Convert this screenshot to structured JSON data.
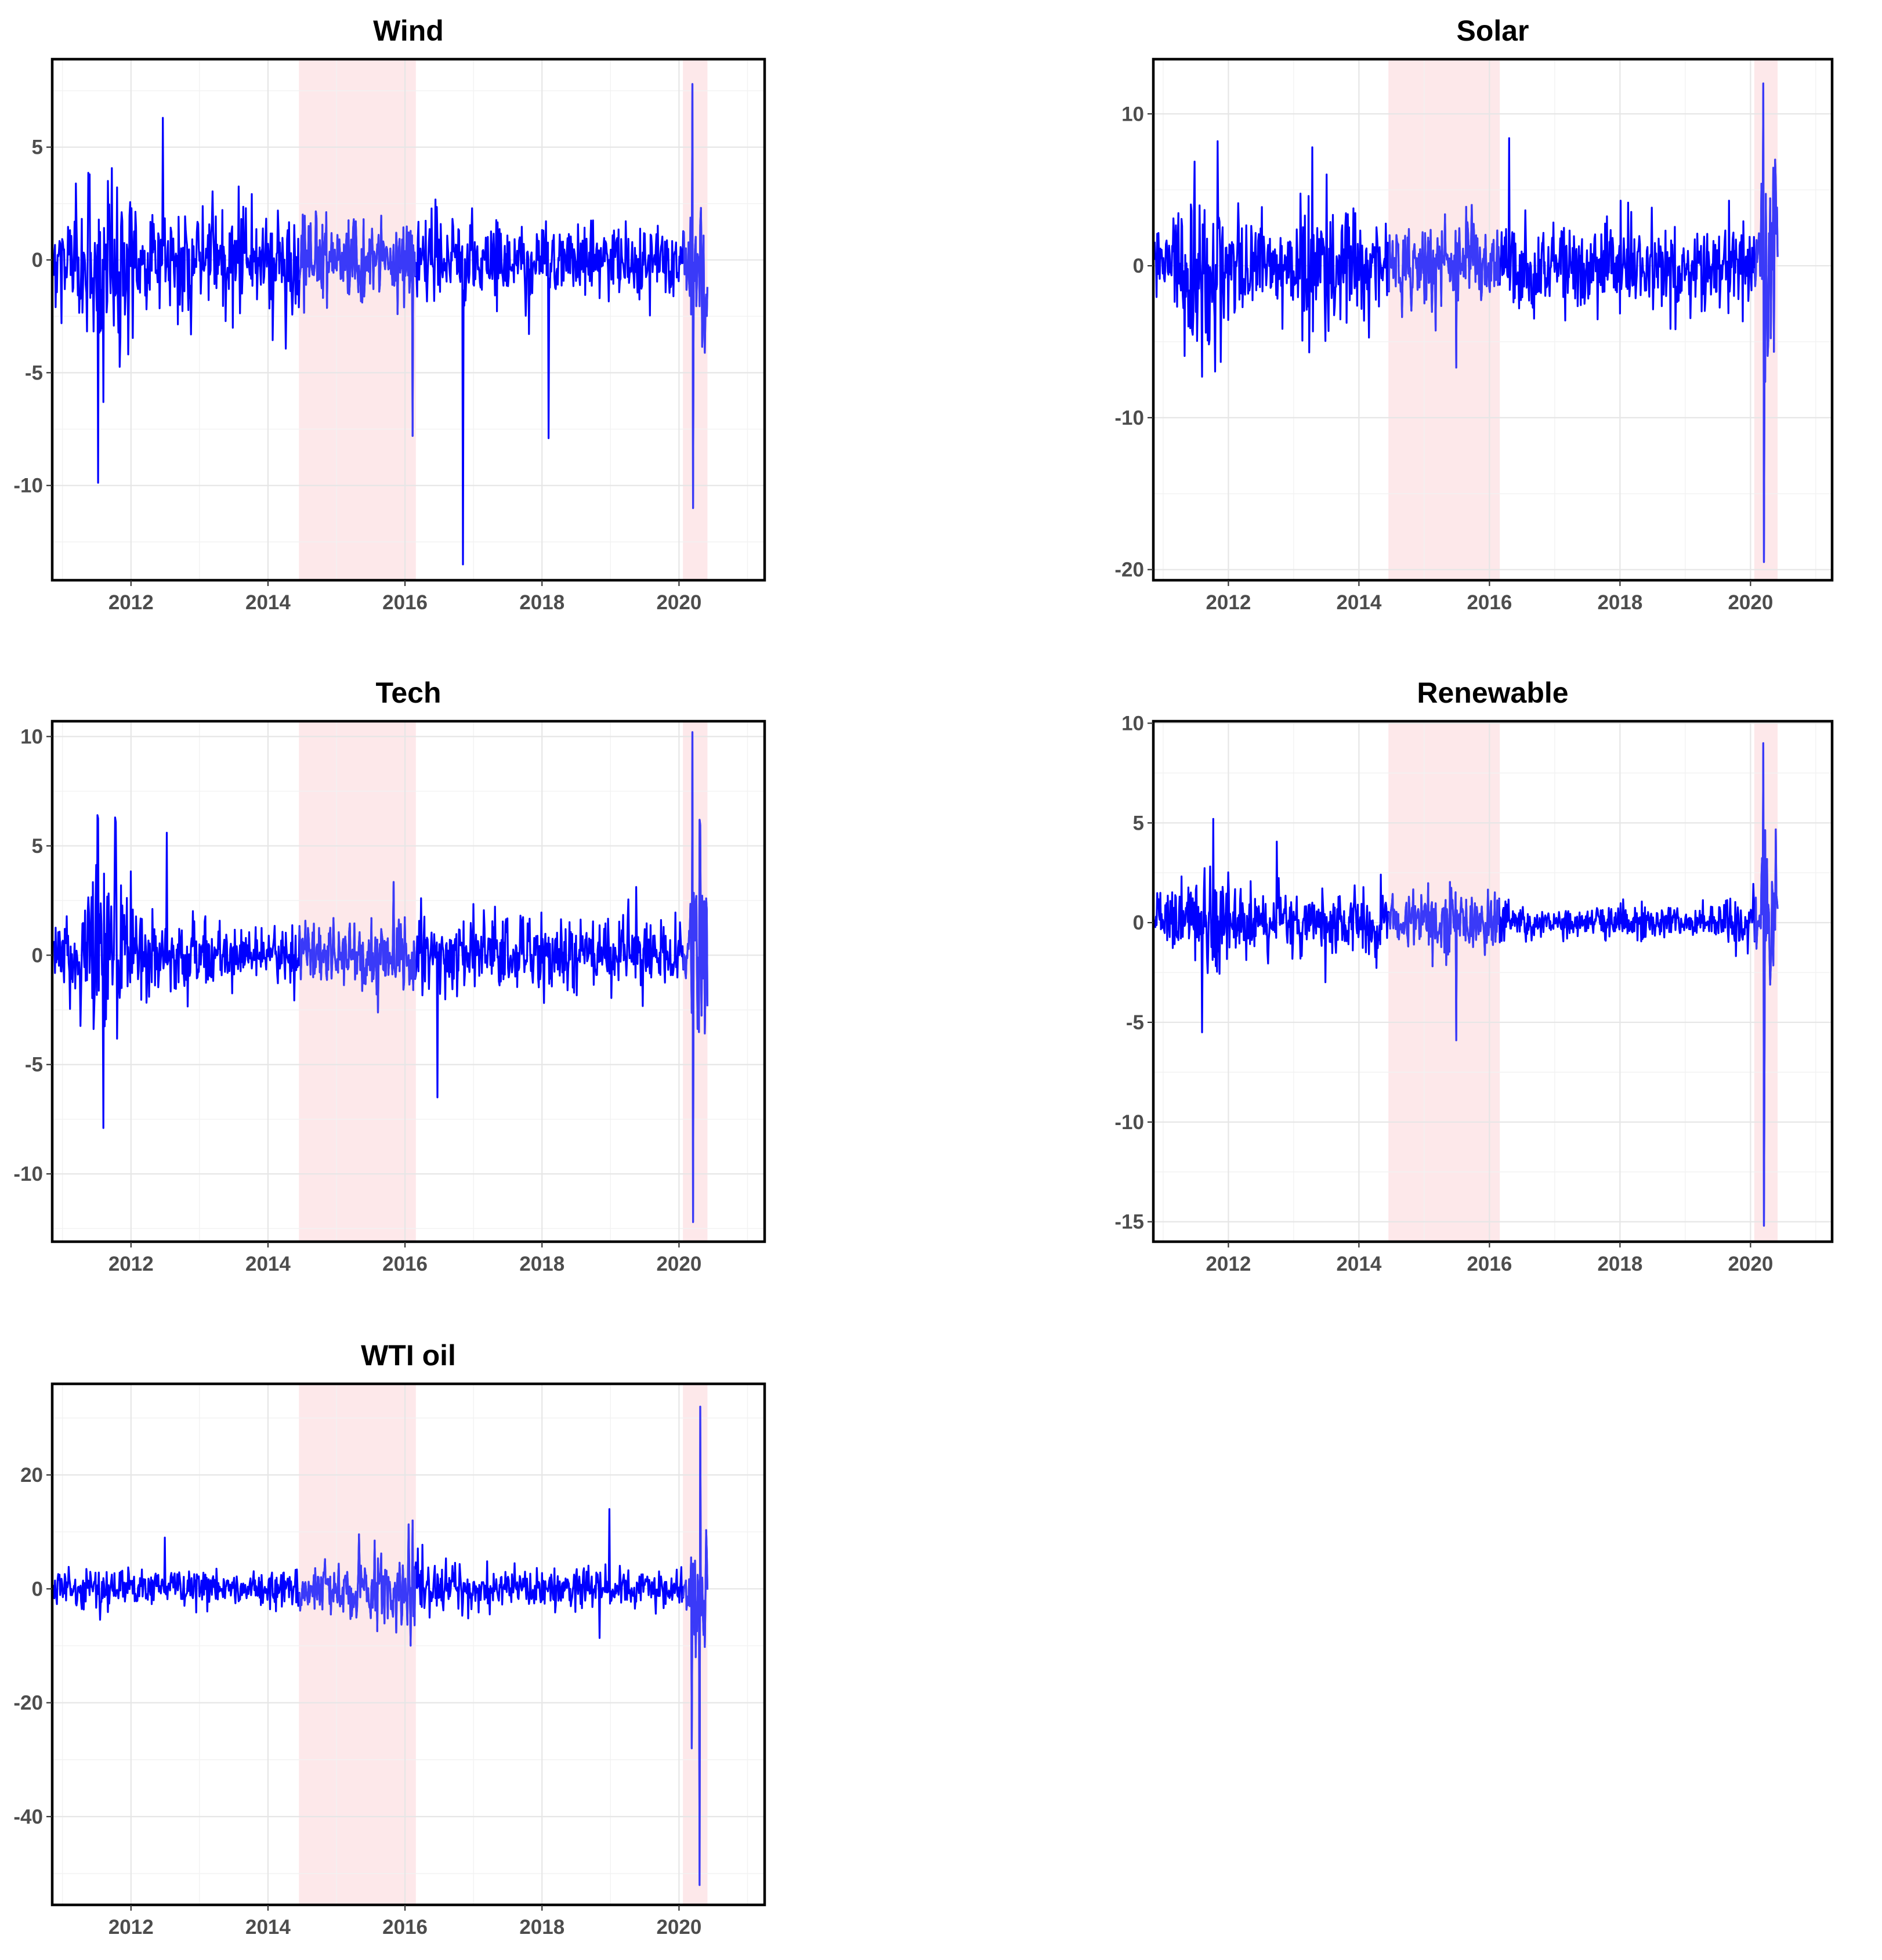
{
  "chart_data": [
    {
      "type": "line",
      "title": "Wind",
      "xlabel": "",
      "ylabel": "",
      "x_range": [
        "2010-11-15",
        "2020-06-01"
      ],
      "xlim_years": [
        2010.85,
        2021.25
      ],
      "ylim": [
        -14.2,
        8.9
      ],
      "y_ticks": [
        -10,
        -5,
        0,
        5
      ],
      "y_tick_labels": [
        "-10",
        "-5",
        "0",
        "5"
      ],
      "x_ticks": [
        2012,
        2014,
        2016,
        2018,
        2020
      ],
      "x_tick_labels": [
        "2012",
        "2014",
        "2016",
        "2018",
        "2020"
      ],
      "grid": true,
      "legend": "none",
      "approx_range": [
        -13.5,
        7.8
      ],
      "extremes": [
        {
          "date": "2011-08-08",
          "value": -6.3
        },
        {
          "date": "2012-06-20",
          "value": 6.3
        },
        {
          "date": "2016-02-10",
          "value": -7.8
        },
        {
          "date": "2016-11-04",
          "value": -13.5
        },
        {
          "date": "2018-02-05",
          "value": -7.9
        },
        {
          "date": "2020-03-12",
          "value": 7.8
        },
        {
          "date": "2020-03-16",
          "value": -11.0
        }
      ]
    },
    {
      "type": "line",
      "title": "Solar",
      "xlabel": "",
      "ylabel": "",
      "x_range": [
        "2010-11-15",
        "2020-06-01"
      ],
      "xlim_years": [
        2010.85,
        2021.25
      ],
      "ylim": [
        -20.7,
        13.6
      ],
      "y_ticks": [
        -20,
        -10,
        0,
        10
      ],
      "y_tick_labels": [
        "-20",
        "-10",
        "0",
        "10"
      ],
      "x_ticks": [
        2012,
        2014,
        2016,
        2018,
        2020
      ],
      "x_tick_labels": [
        "2012",
        "2014",
        "2016",
        "2018",
        "2020"
      ],
      "grid": true,
      "legend": "none",
      "approx_range": [
        -19.5,
        12.0
      ],
      "extremes": [
        {
          "date": "2011-08-08",
          "value": -7.3
        },
        {
          "date": "2011-11-01",
          "value": 8.2
        },
        {
          "date": "2013-04-15",
          "value": 7.8
        },
        {
          "date": "2015-06-29",
          "value": -6.7
        },
        {
          "date": "2016-04-20",
          "value": 8.4
        },
        {
          "date": "2020-03-12",
          "value": 12.0
        },
        {
          "date": "2020-03-16",
          "value": -19.5
        }
      ]
    },
    {
      "type": "line",
      "title": "Tech",
      "xlabel": "",
      "ylabel": "",
      "x_range": [
        "2010-11-15",
        "2020-06-01"
      ],
      "xlim_years": [
        2010.85,
        2021.25
      ],
      "ylim": [
        -13.1,
        10.7
      ],
      "y_ticks": [
        -10,
        -5,
        0,
        5,
        10
      ],
      "y_tick_labels": [
        "-10",
        "-5",
        "0",
        "5",
        "10"
      ],
      "x_ticks": [
        2012,
        2014,
        2016,
        2018,
        2020
      ],
      "x_tick_labels": [
        "2012",
        "2014",
        "2016",
        "2018",
        "2020"
      ],
      "grid": true,
      "legend": "none",
      "approx_range": [
        -12.2,
        10.2
      ],
      "extremes": [
        {
          "date": "2011-08-08",
          "value": -7.9
        },
        {
          "date": "2011-10-10",
          "value": 6.3
        },
        {
          "date": "2012-07-10",
          "value": 5.6
        },
        {
          "date": "2016-06-24",
          "value": -6.5
        },
        {
          "date": "2020-03-13",
          "value": 10.2
        },
        {
          "date": "2020-03-16",
          "value": -12.2
        }
      ]
    },
    {
      "type": "line",
      "title": "Renewable",
      "xlabel": "",
      "ylabel": "",
      "x_range": [
        "2010-11-15",
        "2020-06-01"
      ],
      "xlim_years": [
        2010.85,
        2021.25
      ],
      "ylim": [
        -16.0,
        10.1
      ],
      "y_ticks": [
        -15,
        -10,
        -5,
        0,
        5,
        10
      ],
      "y_tick_labels": [
        "-15",
        "-10",
        "-5",
        "0",
        "5",
        "10"
      ],
      "x_ticks": [
        2012,
        2014,
        2016,
        2018,
        2020
      ],
      "x_tick_labels": [
        "2012",
        "2014",
        "2016",
        "2018",
        "2020"
      ],
      "grid": true,
      "legend": "none",
      "approx_range": [
        -15.2,
        9.0
      ],
      "extremes": [
        {
          "date": "2011-08-08",
          "value": -5.5
        },
        {
          "date": "2011-10-10",
          "value": 5.2
        },
        {
          "date": "2015-06-29",
          "value": -5.9
        },
        {
          "date": "2020-03-13",
          "value": 9.0
        },
        {
          "date": "2020-03-16",
          "value": -15.2
        }
      ]
    },
    {
      "type": "line",
      "title": "WTI oil",
      "xlabel": "",
      "ylabel": "",
      "x_range": [
        "2010-11-15",
        "2020-06-01"
      ],
      "xlim_years": [
        2010.85,
        2021.25
      ],
      "ylim": [
        -55.5,
        36.0
      ],
      "y_ticks": [
        -40,
        -20,
        0,
        20
      ],
      "y_tick_labels": [
        "-40",
        "-20",
        "0",
        "20"
      ],
      "x_ticks": [
        2012,
        2014,
        2016,
        2018,
        2020
      ],
      "x_tick_labels": [
        "2012",
        "2014",
        "2016",
        "2018",
        "2020"
      ],
      "grid": true,
      "legend": "none",
      "approx_range": [
        -52.0,
        32.0
      ],
      "extremes": [
        {
          "date": "2012-06-29",
          "value": 9.0
        },
        {
          "date": "2016-02-12",
          "value": 12.0
        },
        {
          "date": "2018-12-26",
          "value": 14.0
        },
        {
          "date": "2020-03-09",
          "value": -28.0
        },
        {
          "date": "2020-04-20",
          "value": -52.0
        },
        {
          "date": "2020-04-22",
          "value": 32.0
        }
      ]
    }
  ],
  "shaded_periods": [
    {
      "start": "2014-06-15",
      "end": "2016-02-28",
      "color": "#fde8ea"
    },
    {
      "start": "2020-01-22",
      "end": "2020-06-01",
      "color": "#fde8ea"
    }
  ],
  "colors": {
    "series_normal": "#0000ff",
    "series_shaded": "#3a3af8",
    "shade": "#fde8ea",
    "frame": "#000000",
    "grid": "#e6e6e6"
  }
}
